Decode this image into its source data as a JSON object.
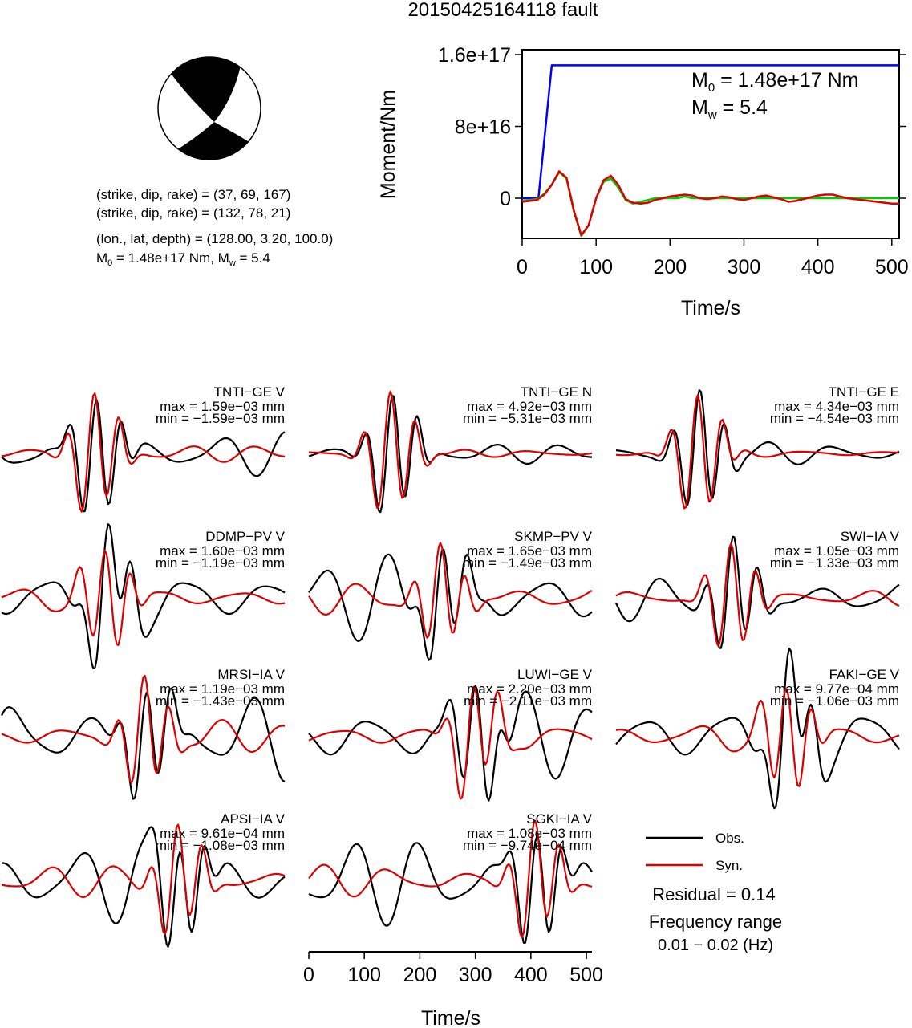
{
  "title": "20150425164118 fault",
  "mechanism": {
    "plane1": "(strike, dip, rake) = (37, 69, 167)",
    "plane2": "(strike, dip, rake) = (132, 78, 21)",
    "location": "(lon., lat, depth) = (128.00, 3.20, 100.0)",
    "moment_line": {
      "m_prefix": "M",
      "m_sub": "0",
      "m_value": " = 1.48e+17 Nm, ",
      "w_prefix": "M",
      "w_sub": "w",
      "w_value": " = 5.4"
    }
  },
  "chart_data": [
    {
      "type": "line",
      "name": "moment-rate",
      "xlabel": "Time/s",
      "ylabel": "Moment/Nm",
      "xlim": [
        0,
        510
      ],
      "ylim": [
        -9e+16,
        1.65e+17
      ],
      "xticks": [
        0,
        100,
        200,
        300,
        400,
        500
      ],
      "yticks": [
        0,
        8e+16,
        1.6e+17
      ],
      "ytick_labels": [
        "0",
        "8e+16",
        "1.6e+17"
      ],
      "annotation": {
        "m0_prefix": "M",
        "m0_sub": "0",
        "m0_value": " = 1.48e+17 Nm",
        "mw_prefix": "M",
        "mw_sub": "w",
        "mw_value": " = 5.4"
      },
      "series": [
        {
          "color": "#0000ff",
          "kind": "moment",
          "x": [
            0,
            22,
            40,
            510
          ],
          "y": [
            0,
            0,
            1.48e+17,
            1.48e+17
          ]
        },
        {
          "color": "#00cc00",
          "kind": "rate",
          "x": [
            0,
            20,
            30,
            40,
            50,
            60,
            70,
            80,
            90,
            100,
            110,
            120,
            130,
            140,
            150,
            160,
            170,
            180,
            190,
            200,
            210,
            220,
            230,
            240,
            250,
            510
          ],
          "y": [
            -3000000000000000.0,
            -1000000000000000.0,
            5000000000000000.0,
            1.5e+16,
            2.9e+16,
            2.2e+16,
            -1.5e+16,
            -4.2e+16,
            -3e+16,
            0,
            1.8e+16,
            2.2e+16,
            1.2e+16,
            -2000000000000000.0,
            -6000000000000000.0,
            -4000000000000000.0,
            -2000000000000000.0,
            0,
            0,
            0,
            0,
            2000000000000000.0,
            0,
            0,
            0,
            0
          ]
        },
        {
          "color": "#dd0000",
          "kind": "rate",
          "x": [
            0,
            20,
            30,
            40,
            50,
            60,
            70,
            80,
            90,
            100,
            110,
            120,
            130,
            140,
            150,
            160,
            170,
            180,
            190,
            200,
            210,
            220,
            230,
            240,
            250,
            260,
            270,
            280,
            290,
            300,
            310,
            320,
            330,
            340,
            350,
            360,
            370,
            380,
            390,
            400,
            410,
            420,
            430,
            440,
            450,
            460,
            470,
            480,
            490,
            500,
            510
          ],
          "y": [
            -4000000000000000.0,
            -2000000000000000.0,
            4000000000000000.0,
            1.5e+16,
            3e+16,
            2.3e+16,
            -1.4e+16,
            -4.1e+16,
            -3e+16,
            0,
            2e+16,
            2.5e+16,
            1.5e+16,
            -1000000000000000.0,
            -5000000000000000.0,
            -6000000000000000.0,
            -5000000000000000.0,
            -2000000000000000.0,
            0,
            2000000000000000.0,
            3000000000000000.0,
            4000000000000000.0,
            3000000000000000.0,
            0,
            -1000000000000000.0,
            0,
            2000000000000000.0,
            1000000000000000.0,
            -1000000000000000.0,
            -2000000000000000.0,
            0,
            2000000000000000.0,
            3000000000000000.0,
            1000000000000000.0,
            -1000000000000000.0,
            -4000000000000000.0,
            -3000000000000000.0,
            -1000000000000000.0,
            1000000000000000.0,
            3000000000000000.0,
            4000000000000000.0,
            4000000000000000.0,
            2000000000000000.0,
            0,
            -1000000000000000.0,
            -2000000000000000.0,
            -3000000000000000.0,
            -4000000000000000.0,
            -5000000000000000.0,
            -6000000000000000.0,
            -6000000000000000.0
          ]
        }
      ]
    },
    {
      "type": "line",
      "name": "waveforms",
      "xlabel": "Time/s",
      "xlim": [
        0,
        510
      ],
      "xticks": [
        0,
        100,
        200,
        300,
        400,
        500
      ],
      "legend": [
        {
          "label": "Obs.",
          "color": "#000000"
        },
        {
          "label": "Syn.",
          "color": "#dd0000"
        }
      ],
      "residual": "Residual = 0.14",
      "frequency_label": "Frequency range",
      "frequency_range": "0.01 − 0.02 (Hz)",
      "stations": [
        {
          "label": "TNTI−GE V",
          "max": "max = 1.59e−03 mm",
          "min": "min = −1.59e−03 mm"
        },
        {
          "label": "TNTI−GE N",
          "max": "max = 4.92e−03 mm",
          "min": "min = −5.31e−03 mm"
        },
        {
          "label": "TNTI−GE E",
          "max": "max = 4.34e−03 mm",
          "min": "min = −4.54e−03 mm"
        },
        {
          "label": "DDMP−PV V",
          "max": "max = 1.60e−03 mm",
          "min": "min = −1.19e−03 mm"
        },
        {
          "label": "SKMP−PV V",
          "max": "max = 1.65e−03 mm",
          "min": "min = −1.49e−03 mm"
        },
        {
          "label": "SWI−IA V",
          "max": "max = 1.05e−03 mm",
          "min": "min = −1.33e−03 mm"
        },
        {
          "label": "MRSI−IA V",
          "max": "max = 1.19e−03 mm",
          "min": "min = −1.43e−03 mm"
        },
        {
          "label": "LUWI−GE V",
          "max": "max = 2.20e−03 mm",
          "min": "min = −2.11e−03 mm"
        },
        {
          "label": "FAKI−GE V",
          "max": "max = 9.77e−04 mm",
          "min": "min = −1.06e−03 mm"
        },
        {
          "label": "APSI−IA V",
          "max": "max = 9.61e−04 mm",
          "min": "min = −1.08e−03 mm"
        },
        {
          "label": "SGKI−IA V",
          "max": "max = 1.08e−03 mm",
          "min": "min = −9.74e−04 mm"
        }
      ]
    }
  ]
}
